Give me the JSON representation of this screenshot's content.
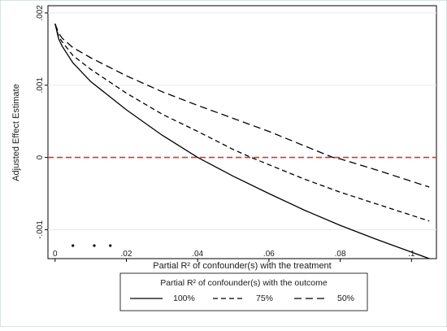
{
  "chart_data": {
    "type": "line",
    "xlabel": "Partial R² of confounder(s) with the treatment",
    "ylabel": "Adjusted Effect Estimate",
    "xlim": [
      -0.002,
      0.107
    ],
    "ylim": [
      -0.0014,
      0.0021
    ],
    "x_ticks": [
      0,
      0.02,
      0.04,
      0.06,
      0.08,
      0.1
    ],
    "x_tick_labels": [
      "0",
      ".02",
      ".04",
      ".06",
      ".08",
      ".1"
    ],
    "y_ticks": [
      -0.001,
      0,
      0.001,
      0.002
    ],
    "y_tick_labels": [
      "-.001",
      "0",
      ".001",
      ".002"
    ],
    "reference_line": {
      "y": 0,
      "color": "#e8322c",
      "style": "dashed"
    },
    "legend": {
      "title": "Partial R² of confounder(s) with the outcome",
      "placement": "bottom"
    },
    "series": [
      {
        "name": "100%",
        "style": "solid",
        "color": "#000000",
        "x": [
          0,
          0.001,
          0.002,
          0.005,
          0.01,
          0.02,
          0.03,
          0.04,
          0.05,
          0.06,
          0.07,
          0.08,
          0.09,
          0.1,
          0.105
        ],
        "y": [
          0.00185,
          0.00164,
          0.00154,
          0.00131,
          0.00105,
          0.00066,
          0.00031,
          0.0,
          -0.00026,
          -0.0005,
          -0.00073,
          -0.00094,
          -0.00113,
          -0.00131,
          -0.0014
        ]
      },
      {
        "name": "75%",
        "style": "dashed",
        "color": "#000000",
        "x": [
          0,
          0.001,
          0.002,
          0.005,
          0.01,
          0.02,
          0.03,
          0.04,
          0.05,
          0.055,
          0.06,
          0.07,
          0.08,
          0.09,
          0.1,
          0.105
        ],
        "y": [
          0.00185,
          0.00167,
          0.0016,
          0.00141,
          0.00122,
          0.00089,
          0.0006,
          0.00036,
          0.00011,
          0.0,
          -0.0001,
          -0.0003,
          -0.00048,
          -0.00064,
          -0.0008,
          -0.00088
        ]
      },
      {
        "name": "50%",
        "style": "dash-long",
        "color": "#000000",
        "x": [
          0,
          0.001,
          0.002,
          0.005,
          0.01,
          0.02,
          0.03,
          0.04,
          0.05,
          0.06,
          0.07,
          0.078,
          0.08,
          0.09,
          0.1,
          0.105
        ],
        "y": [
          0.00185,
          0.00172,
          0.00165,
          0.00152,
          0.00138,
          0.00113,
          0.00091,
          0.00072,
          0.00054,
          0.00036,
          0.00016,
          0.0,
          -2e-05,
          -0.00017,
          -0.00033,
          -0.00041
        ]
      }
    ],
    "markers": {
      "x": [
        0.005,
        0.011,
        0.0155
      ],
      "y": [
        -0.00122,
        -0.00122,
        -0.00122
      ]
    }
  }
}
